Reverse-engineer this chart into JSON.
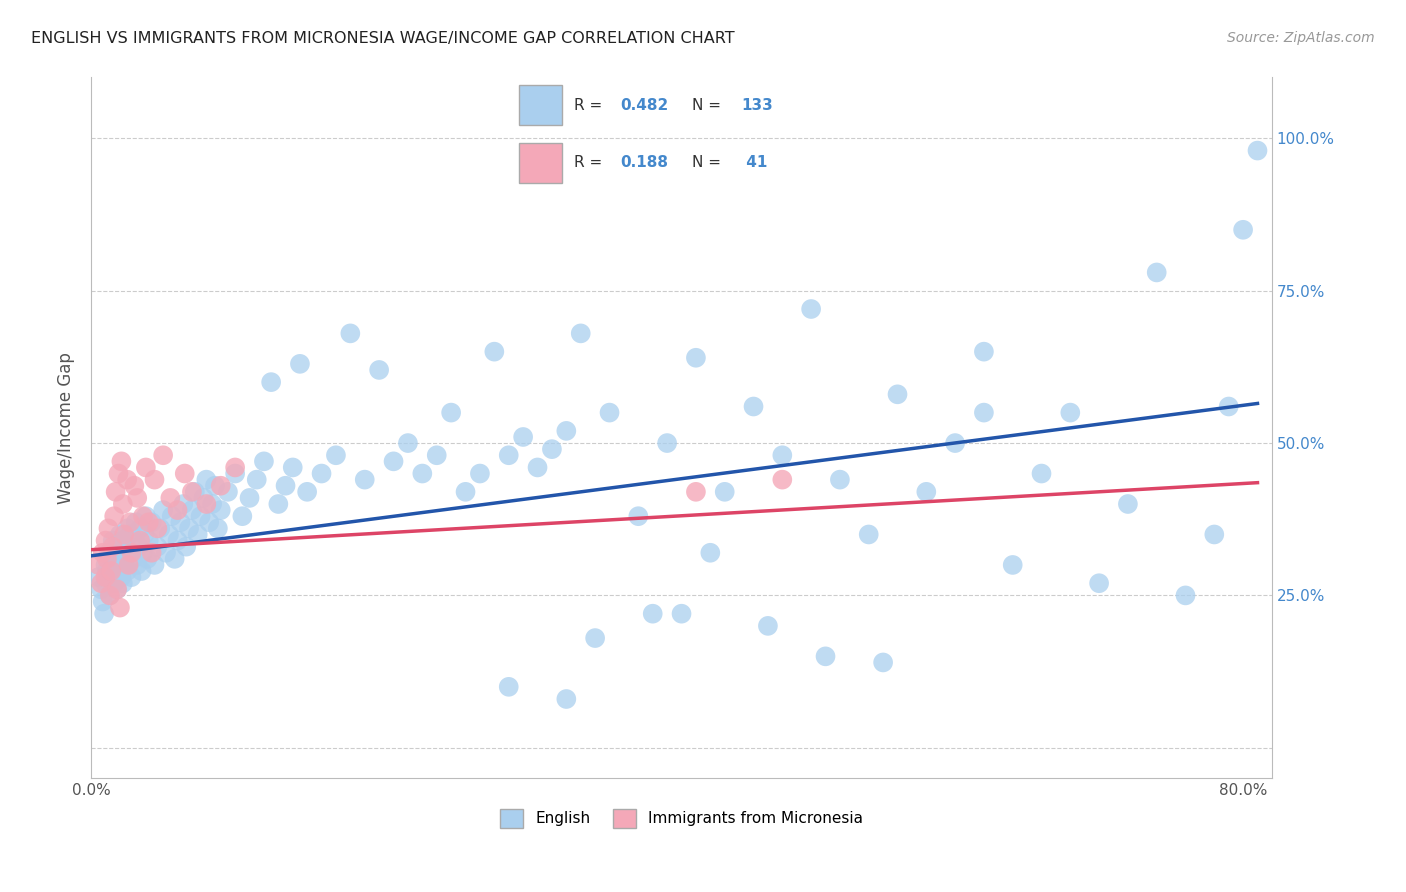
{
  "title": "ENGLISH VS IMMIGRANTS FROM MICRONESIA WAGE/INCOME GAP CORRELATION CHART",
  "source": "Source: ZipAtlas.com",
  "ylabel": "Wage/Income Gap",
  "ytick_labels": [
    "",
    "25.0%",
    "50.0%",
    "75.0%",
    "100.0%"
  ],
  "ytick_values": [
    0.0,
    0.25,
    0.5,
    0.75,
    1.0
  ],
  "xlim": [
    0.0,
    0.82
  ],
  "ylim": [
    -0.05,
    1.1
  ],
  "english_R": 0.482,
  "english_N": 133,
  "immigrant_R": 0.188,
  "immigrant_N": 41,
  "english_color": "#aacfee",
  "immigrant_color": "#f4a8b8",
  "english_line_color": "#2255aa",
  "immigrant_line_color": "#dd4466",
  "legend_label_english": "English",
  "legend_label_immigrant": "Immigrants from Micronesia",
  "eng_line_x0": 0.0,
  "eng_line_y0": 0.315,
  "eng_line_x1": 0.81,
  "eng_line_y1": 0.565,
  "imm_line_x0": 0.0,
  "imm_line_y0": 0.325,
  "imm_line_x1": 0.81,
  "imm_line_y1": 0.435,
  "english_x": [
    0.005,
    0.007,
    0.008,
    0.009,
    0.01,
    0.01,
    0.011,
    0.012,
    0.013,
    0.014,
    0.015,
    0.015,
    0.016,
    0.017,
    0.018,
    0.018,
    0.019,
    0.02,
    0.02,
    0.021,
    0.021,
    0.022,
    0.022,
    0.023,
    0.024,
    0.025,
    0.025,
    0.026,
    0.027,
    0.028,
    0.029,
    0.03,
    0.031,
    0.032,
    0.033,
    0.034,
    0.035,
    0.036,
    0.037,
    0.038,
    0.039,
    0.04,
    0.042,
    0.044,
    0.046,
    0.048,
    0.05,
    0.052,
    0.054,
    0.056,
    0.058,
    0.06,
    0.062,
    0.064,
    0.066,
    0.068,
    0.07,
    0.072,
    0.074,
    0.076,
    0.078,
    0.08,
    0.082,
    0.084,
    0.086,
    0.088,
    0.09,
    0.095,
    0.1,
    0.105,
    0.11,
    0.115,
    0.12,
    0.125,
    0.13,
    0.135,
    0.14,
    0.145,
    0.15,
    0.16,
    0.17,
    0.18,
    0.19,
    0.2,
    0.21,
    0.22,
    0.23,
    0.24,
    0.25,
    0.26,
    0.27,
    0.28,
    0.29,
    0.3,
    0.31,
    0.32,
    0.33,
    0.34,
    0.36,
    0.38,
    0.4,
    0.42,
    0.44,
    0.46,
    0.48,
    0.5,
    0.52,
    0.54,
    0.56,
    0.58,
    0.6,
    0.62,
    0.64,
    0.66,
    0.68,
    0.7,
    0.72,
    0.74,
    0.76,
    0.78,
    0.79,
    0.8,
    0.81,
    0.43,
    0.39,
    0.47,
    0.35,
    0.29,
    0.33,
    0.41,
    0.51,
    0.55,
    0.62
  ],
  "english_y": [
    0.28,
    0.26,
    0.24,
    0.22,
    0.3,
    0.27,
    0.29,
    0.32,
    0.25,
    0.28,
    0.31,
    0.34,
    0.27,
    0.3,
    0.33,
    0.26,
    0.29,
    0.32,
    0.35,
    0.28,
    0.31,
    0.34,
    0.27,
    0.3,
    0.33,
    0.36,
    0.29,
    0.32,
    0.35,
    0.28,
    0.31,
    0.34,
    0.37,
    0.3,
    0.33,
    0.36,
    0.29,
    0.32,
    0.35,
    0.38,
    0.31,
    0.34,
    0.37,
    0.3,
    0.33,
    0.36,
    0.39,
    0.32,
    0.35,
    0.38,
    0.31,
    0.34,
    0.37,
    0.4,
    0.33,
    0.36,
    0.39,
    0.42,
    0.35,
    0.38,
    0.41,
    0.44,
    0.37,
    0.4,
    0.43,
    0.36,
    0.39,
    0.42,
    0.45,
    0.38,
    0.41,
    0.44,
    0.47,
    0.6,
    0.4,
    0.43,
    0.46,
    0.63,
    0.42,
    0.45,
    0.48,
    0.68,
    0.44,
    0.62,
    0.47,
    0.5,
    0.45,
    0.48,
    0.55,
    0.42,
    0.45,
    0.65,
    0.48,
    0.51,
    0.46,
    0.49,
    0.52,
    0.68,
    0.55,
    0.38,
    0.5,
    0.64,
    0.42,
    0.56,
    0.48,
    0.72,
    0.44,
    0.35,
    0.58,
    0.42,
    0.5,
    0.65,
    0.3,
    0.45,
    0.55,
    0.27,
    0.4,
    0.78,
    0.25,
    0.35,
    0.56,
    0.85,
    0.98,
    0.32,
    0.22,
    0.2,
    0.18,
    0.1,
    0.08,
    0.22,
    0.15,
    0.14,
    0.55
  ],
  "immigrant_x": [
    0.005,
    0.007,
    0.008,
    0.01,
    0.01,
    0.011,
    0.012,
    0.013,
    0.014,
    0.015,
    0.016,
    0.017,
    0.018,
    0.019,
    0.02,
    0.021,
    0.022,
    0.023,
    0.025,
    0.026,
    0.027,
    0.028,
    0.03,
    0.032,
    0.034,
    0.036,
    0.038,
    0.04,
    0.042,
    0.044,
    0.046,
    0.05,
    0.055,
    0.06,
    0.065,
    0.07,
    0.08,
    0.09,
    0.1,
    0.42,
    0.48
  ],
  "immigrant_y": [
    0.3,
    0.27,
    0.32,
    0.34,
    0.28,
    0.31,
    0.36,
    0.25,
    0.29,
    0.33,
    0.38,
    0.42,
    0.26,
    0.45,
    0.23,
    0.47,
    0.4,
    0.35,
    0.44,
    0.3,
    0.37,
    0.32,
    0.43,
    0.41,
    0.34,
    0.38,
    0.46,
    0.37,
    0.32,
    0.44,
    0.36,
    0.48,
    0.41,
    0.39,
    0.45,
    0.42,
    0.4,
    0.43,
    0.46,
    0.42,
    0.44
  ]
}
